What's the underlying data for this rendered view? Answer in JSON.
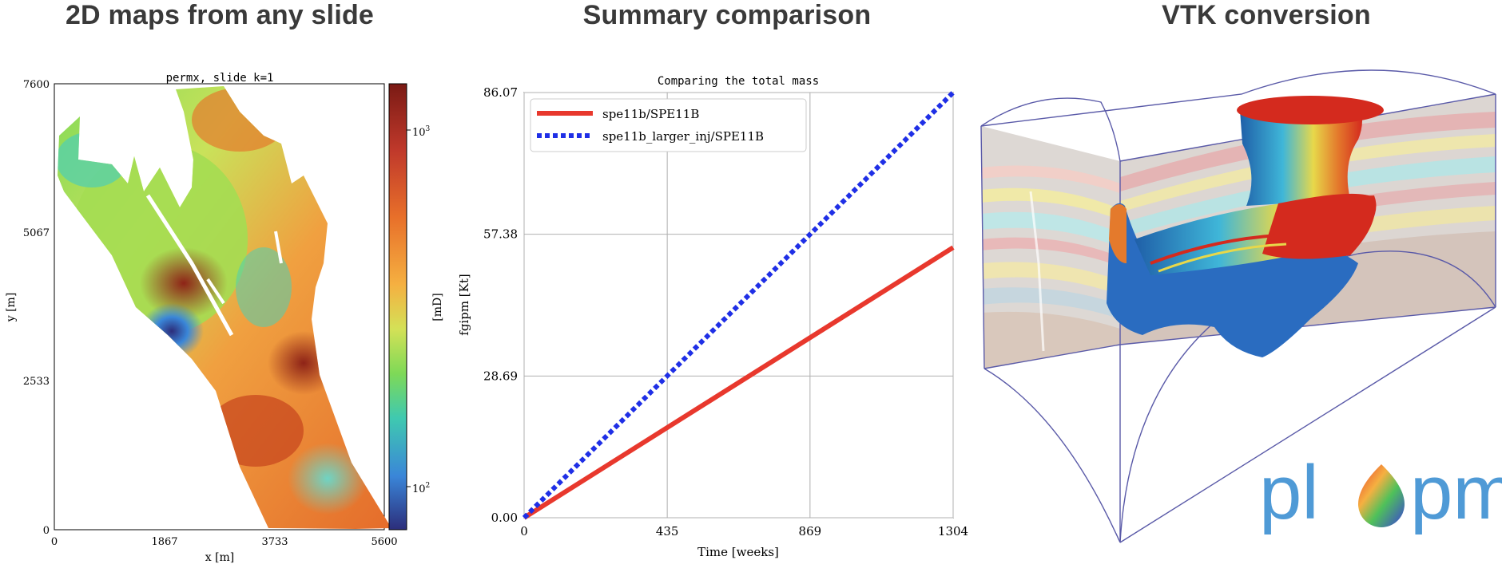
{
  "titles": {
    "left": "2D maps from any slide",
    "middle": "Summary comparison",
    "right": "VTK conversion"
  },
  "map_panel": {
    "title": "permx, slide k=1",
    "xlabel": "x [m]",
    "ylabel": "y [m]",
    "x_ticks": [
      "0",
      "1867",
      "3733",
      "5600"
    ],
    "y_ticks": [
      "0",
      "2533",
      "5067",
      "7600"
    ],
    "colorbar_label": "[mD]",
    "colorbar_ticks": [
      "10",
      "10"
    ],
    "colorbar_exponents": [
      "3",
      "2"
    ],
    "colorbar_colors": [
      "#7a1a14",
      "#c0392b",
      "#e8702a",
      "#f5b041",
      "#d4e157",
      "#7ed957",
      "#3fc9b0",
      "#3a86d8",
      "#2c2d7a"
    ]
  },
  "chart_data": {
    "type": "line",
    "title": "Comparing the total mass",
    "xlabel": "Time [weeks]",
    "ylabel": "fgipm [Kt]",
    "x_ticks": [
      "0",
      "435",
      "869",
      "1304"
    ],
    "y_ticks": [
      "0.00",
      "28.69",
      "57.38",
      "86.07"
    ],
    "xlim": [
      0,
      1304
    ],
    "ylim": [
      0,
      86.07
    ],
    "grid": true,
    "legend_position": "top-left",
    "series": [
      {
        "name": "spe11b/SPE11B",
        "color": "#e8382d",
        "style": "solid",
        "x": [
          0,
          1304
        ],
        "y": [
          0,
          54.7
        ]
      },
      {
        "name": "spe11b_larger_inj/SPE11B",
        "color": "#1f2fe6",
        "style": "dotted",
        "x": [
          0,
          1304
        ],
        "y": [
          0,
          86.07
        ]
      }
    ]
  },
  "vtk_panel": {
    "logo_text_left": "pl",
    "logo_text_right": "pm",
    "logo_color": "#4f9ad6"
  }
}
